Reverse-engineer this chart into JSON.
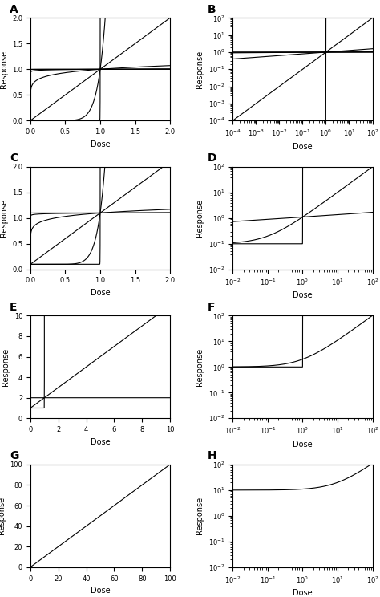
{
  "panels": [
    "A",
    "B",
    "C",
    "D",
    "E",
    "F",
    "G",
    "H"
  ],
  "panel_labels": [
    "A",
    "B",
    "C",
    "D",
    "E",
    "F",
    "G",
    "H"
  ],
  "background_color": "#ffffff",
  "line_color": "#000000"
}
